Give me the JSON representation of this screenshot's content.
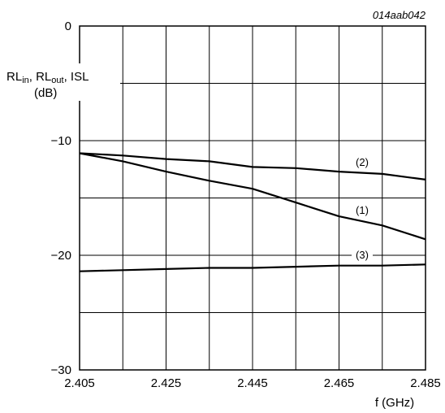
{
  "chart_data": {
    "type": "line",
    "annotation": "014aab042",
    "ylabel_line1": {
      "parts": [
        {
          "text": "RL",
          "sub": false
        },
        {
          "text": "in",
          "sub": true
        },
        {
          "text": ", RL",
          "sub": false
        },
        {
          "text": "out",
          "sub": true
        },
        {
          "text": ", ISL",
          "sub": false
        }
      ]
    },
    "ylabel_line2": "(dB)",
    "xlabel": "f (GHz)",
    "xlim": [
      2.405,
      2.485
    ],
    "ylim": [
      -30,
      0
    ],
    "x_ticks": [
      "2.405",
      "2.425",
      "2.445",
      "2.465",
      "2.485"
    ],
    "y_ticks": [
      "0",
      "−10",
      "−20",
      "−30"
    ],
    "grid": true,
    "series": [
      {
        "name": "(1)",
        "x": [
          2.405,
          2.415,
          2.425,
          2.435,
          2.445,
          2.455,
          2.465,
          2.475,
          2.485
        ],
        "y": [
          -11.1,
          -11.8,
          -12.7,
          -13.5,
          -14.2,
          -15.4,
          -16.6,
          -17.4,
          -18.6
        ]
      },
      {
        "name": "(2)",
        "x": [
          2.405,
          2.415,
          2.425,
          2.435,
          2.445,
          2.455,
          2.465,
          2.475,
          2.485
        ],
        "y": [
          -11.1,
          -11.3,
          -11.6,
          -11.8,
          -12.3,
          -12.4,
          -12.7,
          -12.9,
          -13.4
        ]
      },
      {
        "name": "(3)",
        "x": [
          2.405,
          2.415,
          2.425,
          2.435,
          2.445,
          2.455,
          2.465,
          2.475,
          2.485
        ],
        "y": [
          -21.4,
          -21.3,
          -21.2,
          -21.1,
          -21.1,
          -21.0,
          -20.9,
          -20.9,
          -20.8
        ]
      }
    ]
  }
}
